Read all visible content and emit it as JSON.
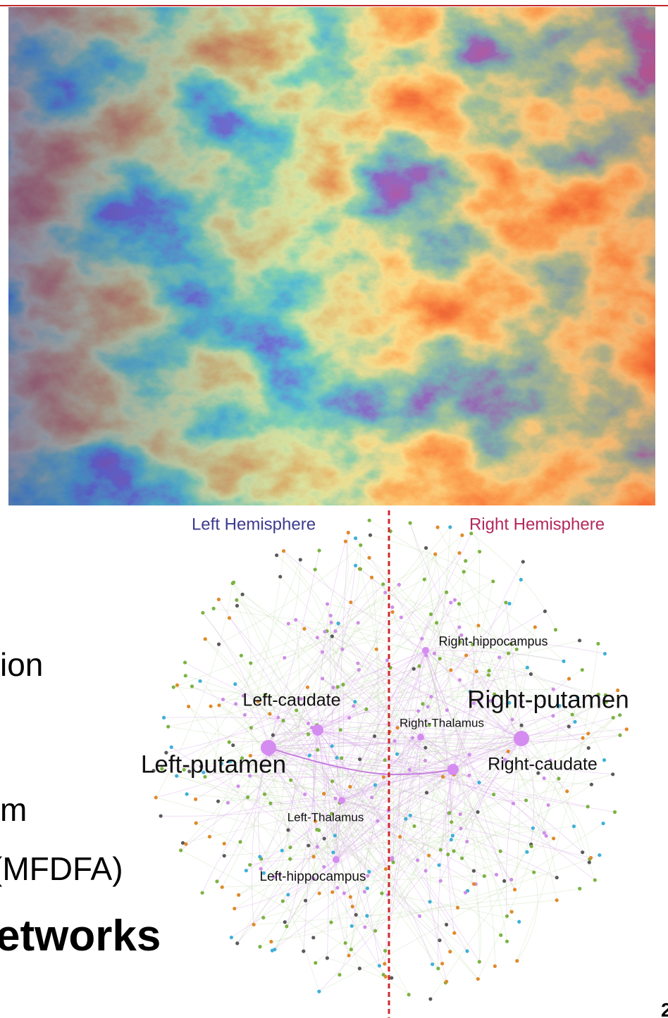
{
  "slide": {
    "fragments": [
      "ion",
      "m",
      "(MFDFA)",
      "etworks"
    ],
    "page_number": "2"
  },
  "network": {
    "hemispheres": [
      "Left Hemisphere",
      "Right Hemisphere"
    ],
    "nodes": [
      {
        "label": "Right-hippocampus"
      },
      {
        "label": "Left-caudate"
      },
      {
        "label": "Right-putamen"
      },
      {
        "label": "Right-Thalamus"
      },
      {
        "label": "Left-putamen"
      },
      {
        "label": "Right-caudate"
      },
      {
        "label": "Left-Thalamus"
      },
      {
        "label": "Left-hippocampus"
      }
    ]
  }
}
